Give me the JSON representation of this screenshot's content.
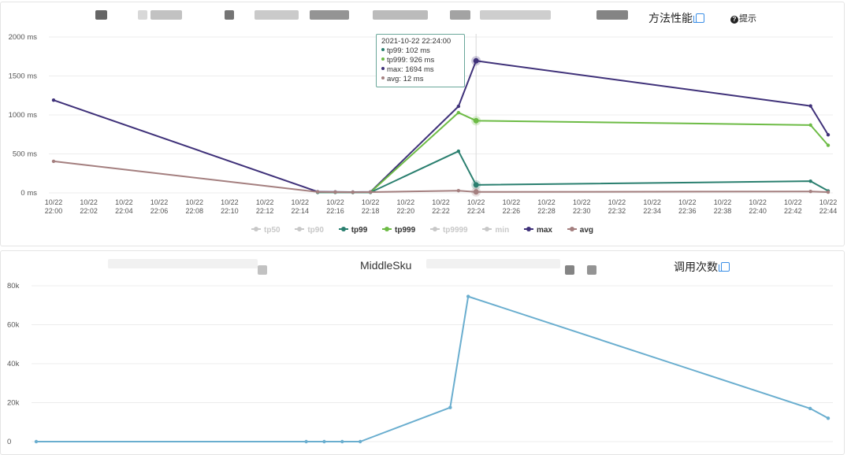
{
  "colors": {
    "tp99": "#2a7f6f",
    "tp999": "#6dbb45",
    "max": "#3f3179",
    "avg": "#a47f7f",
    "legend_off": "#c8c8c8",
    "count": "#6aaecf",
    "grid": "#ececec",
    "tooltip_border": "#6aa79a",
    "hover_line": "#d9d9d9"
  },
  "top_panel": {
    "title_suffix": "方法性能",
    "copy_icon": "copy-icon",
    "help_label": "提示",
    "help_icon": "question-circle-icon",
    "tooltip": {
      "time": "2021-10-22 22:24:00",
      "rows": [
        {
          "series": "tp99",
          "text": "tp99: 102 ms"
        },
        {
          "series": "tp999",
          "text": "tp999: 926 ms"
        },
        {
          "series": "max",
          "text": "max: 1694 ms"
        },
        {
          "series": "avg",
          "text": "avg: 12 ms"
        }
      ]
    },
    "legend": [
      {
        "label": "tp50",
        "active": false,
        "color": "#c8c8c8"
      },
      {
        "label": "tp90",
        "active": false,
        "color": "#c8c8c8"
      },
      {
        "label": "tp99",
        "active": true,
        "color": "#2a7f6f"
      },
      {
        "label": "tp999",
        "active": true,
        "color": "#6dbb45"
      },
      {
        "label": "tp9999",
        "active": false,
        "color": "#c8c8c8"
      },
      {
        "label": "min",
        "active": false,
        "color": "#c8c8c8"
      },
      {
        "label": "max",
        "active": true,
        "color": "#3f3179"
      },
      {
        "label": "avg",
        "active": true,
        "color": "#a47f7f"
      }
    ]
  },
  "bottom_panel": {
    "title_prefix": "MiddleSku",
    "title_suffix": "调用次数",
    "copy_icon": "copy-icon"
  },
  "chart_data": [
    {
      "type": "line",
      "x_domain": [
        0,
        44
      ],
      "ylim": [
        0,
        2000
      ],
      "y_ticks": [
        0,
        500,
        1000,
        1500,
        2000
      ],
      "y_tick_labels": [
        "0 ms",
        "500 ms",
        "1000 ms",
        "1500 ms",
        "2000 ms"
      ],
      "x_ticks": [
        0,
        2,
        4,
        6,
        8,
        10,
        12,
        14,
        16,
        18,
        20,
        22,
        24,
        26,
        28,
        30,
        32,
        34,
        36,
        38,
        40,
        42,
        44
      ],
      "x_tick_labels": [
        "10/22\n22:00",
        "10/22\n22:02",
        "10/22\n22:04",
        "10/22\n22:06",
        "10/22\n22:08",
        "10/22\n22:10",
        "10/22\n22:12",
        "10/22\n22:14",
        "10/22\n22:16",
        "10/22\n22:18",
        "10/22\n22:20",
        "10/22\n22:22",
        "10/22\n22:24",
        "10/22\n22:26",
        "10/22\n22:28",
        "10/22\n22:30",
        "10/22\n22:32",
        "10/22\n22:34",
        "10/22\n22:36",
        "10/22\n22:38",
        "10/22\n22:40",
        "10/22\n22:42",
        "10/22\n22:44"
      ],
      "grid": true,
      "legend_position": "bottom",
      "highlight_x": 24,
      "series": [
        {
          "name": "max",
          "color": "#3f3179",
          "x": [
            0,
            15,
            16,
            17,
            18,
            23,
            24,
            43,
            44
          ],
          "y": [
            1190,
            15,
            12,
            10,
            12,
            1110,
            1694,
            1115,
            745
          ]
        },
        {
          "name": "tp999",
          "color": "#6dbb45",
          "x": [
            15,
            16,
            17,
            18,
            23,
            24,
            43,
            44
          ],
          "y": [
            8,
            8,
            6,
            8,
            1030,
            926,
            870,
            610
          ]
        },
        {
          "name": "tp99",
          "color": "#2a7f6f",
          "x": [
            15,
            16,
            17,
            18,
            23,
            24,
            43,
            44
          ],
          "y": [
            6,
            6,
            5,
            6,
            535,
            102,
            150,
            25
          ]
        },
        {
          "name": "avg",
          "color": "#a47f7f",
          "x": [
            0,
            15,
            16,
            17,
            18,
            23,
            24,
            43,
            44
          ],
          "y": [
            405,
            12,
            10,
            8,
            10,
            28,
            12,
            18,
            10
          ]
        }
      ]
    },
    {
      "type": "line",
      "x_domain": [
        0,
        44
      ],
      "ylim": [
        0,
        80000
      ],
      "y_ticks": [
        0,
        20000,
        40000,
        60000,
        80000
      ],
      "y_tick_labels": [
        "0",
        "20k",
        "40k",
        "60k",
        "80k"
      ],
      "grid": true,
      "series": [
        {
          "name": "",
          "color": "#6aaecf",
          "x": [
            0,
            15,
            16,
            17,
            18,
            23,
            24,
            43,
            44
          ],
          "y": [
            0,
            0,
            0,
            0,
            0,
            17500,
            74500,
            17000,
            12000
          ]
        }
      ]
    }
  ]
}
